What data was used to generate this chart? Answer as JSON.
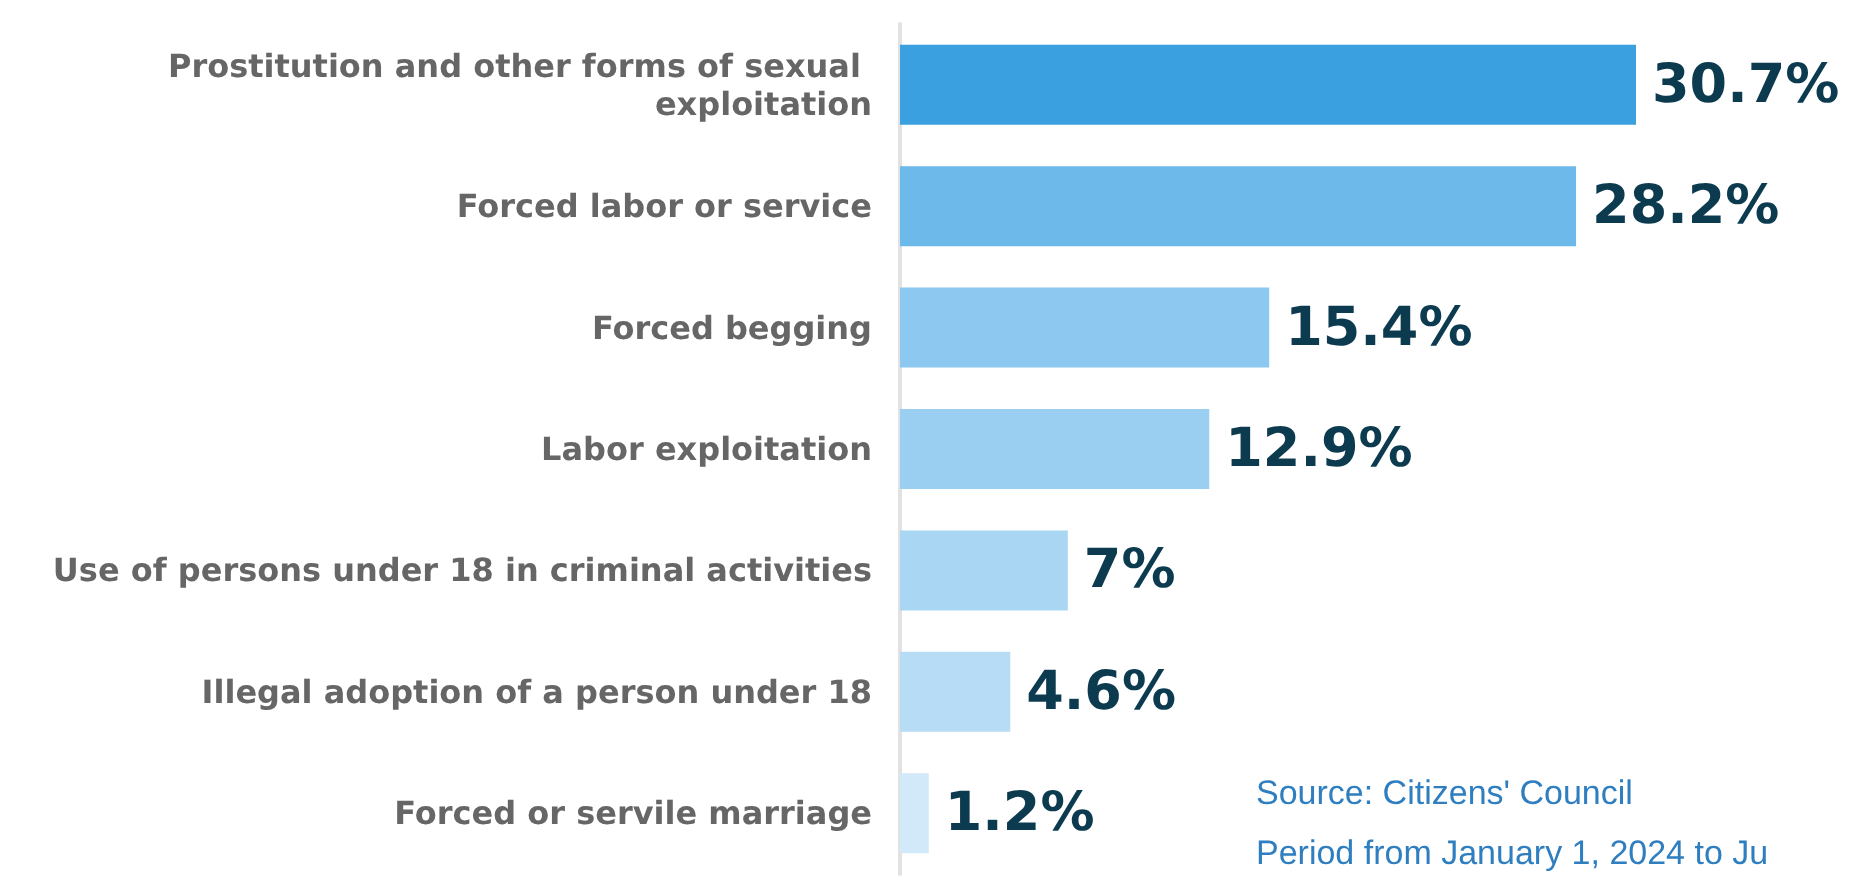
{
  "chart_data": {
    "type": "bar",
    "orientation": "horizontal",
    "categories": [
      "Prostitution and other forms of sexual exploitation",
      "Forced labor or service",
      "Forced begging",
      "Labor exploitation",
      "Use of persons under 18 in criminal activities",
      "Illegal adoption of a person under 18",
      "Forced or servile marriage"
    ],
    "values": [
      30.7,
      28.2,
      15.4,
      12.9,
      7,
      4.6,
      1.2
    ],
    "value_labels": [
      "30.7%",
      "28.2%",
      "15.4%",
      "12.9%",
      "7%",
      "4.6%",
      "1.2%"
    ],
    "colors": [
      "#3aa0e0",
      "#6cb9ea",
      "#8cc8ef",
      "#9acff1",
      "#a8d6f3",
      "#b6ddf5",
      "#d2e9f9"
    ],
    "annotations": [
      "Source: Citizens' Council",
      "Period from January 1, 2024 to Ju"
    ]
  }
}
